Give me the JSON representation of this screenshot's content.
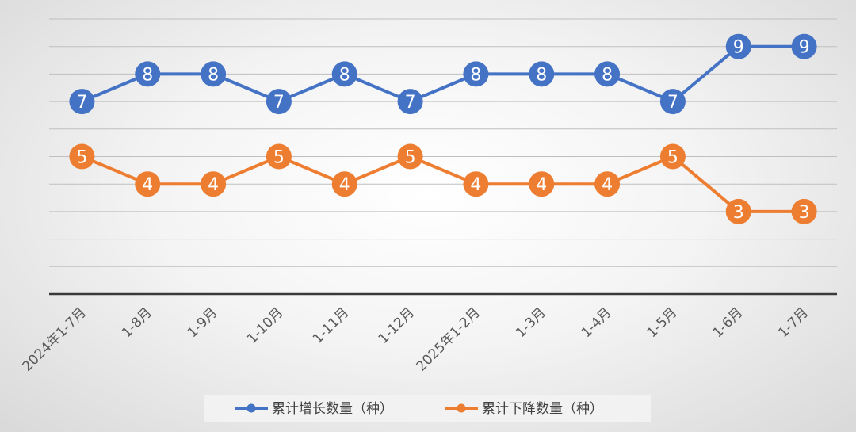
{
  "chart_data": {
    "type": "line",
    "categories": [
      "2024年1-7月",
      "1-8月",
      "1-9月",
      "1-10月",
      "1-11月",
      "1-12月",
      "2025年1-2月",
      "1-3月",
      "1-4月",
      "1-5月",
      "1-6月",
      "1-7月"
    ],
    "series": [
      {
        "name": "累计增长数量（种）",
        "color": "#4472C4",
        "values": [
          7,
          8,
          8,
          7,
          8,
          7,
          8,
          8,
          8,
          7,
          9,
          9
        ]
      },
      {
        "name": "累计下降数量（种）",
        "color": "#ED7D31",
        "values": [
          5,
          4,
          4,
          5,
          4,
          5,
          4,
          4,
          4,
          5,
          3,
          3
        ]
      }
    ],
    "title": "",
    "xlabel": "",
    "ylabel": "",
    "ylim": [
      0,
      10
    ],
    "grid": true,
    "data_labels": true,
    "legend_position": "bottom"
  }
}
